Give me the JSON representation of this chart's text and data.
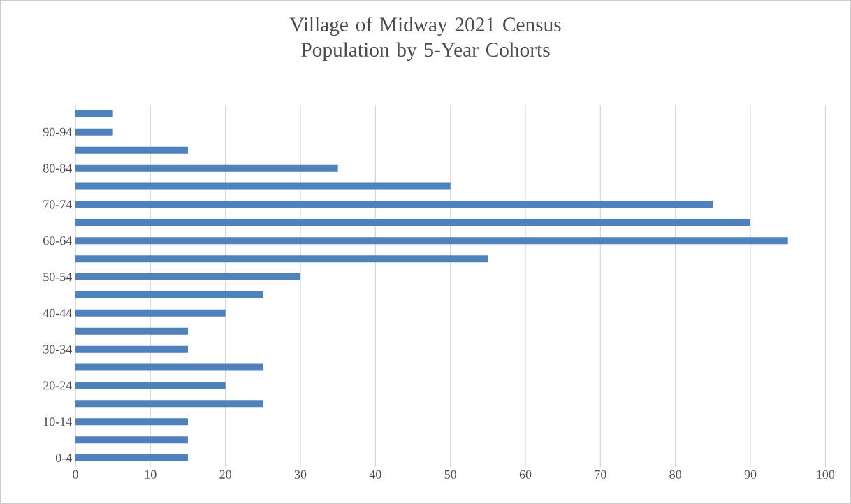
{
  "chart_data": {
    "type": "bar",
    "orientation": "horizontal",
    "title": "Village of Midway 2021 Census Population by 5-Year Cohorts",
    "categories": [
      null,
      "90-94",
      null,
      "80-84",
      null,
      "70-74",
      null,
      "60-64",
      null,
      "50-54",
      null,
      "40-44",
      null,
      "30-34",
      null,
      "20-24",
      null,
      "10-14",
      null,
      "0-4"
    ],
    "values": [
      5,
      5,
      15,
      35,
      50,
      85,
      90,
      95,
      55,
      30,
      25,
      20,
      15,
      15,
      25,
      20,
      25,
      15,
      15,
      15
    ],
    "color": "#4f81bd",
    "xlim": [
      0,
      100
    ],
    "xticks": [
      0,
      10,
      20,
      30,
      40,
      50,
      60,
      70,
      80,
      90,
      100
    ],
    "grid": "x"
  }
}
